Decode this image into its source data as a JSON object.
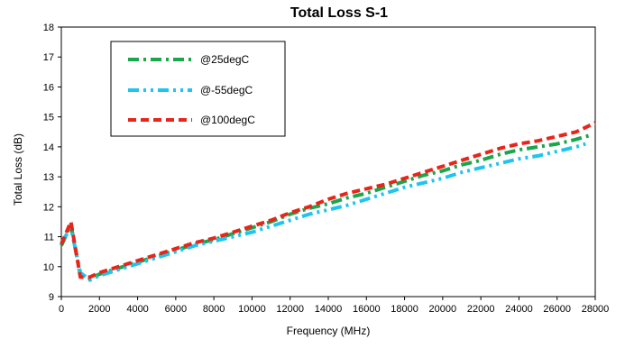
{
  "chart_data": {
    "type": "line",
    "title": "Total Loss S-1",
    "xlabel": "Frequency (MHz)",
    "ylabel": "Total Loss (dB)",
    "xlim": [
      0,
      28000
    ],
    "ylim": [
      9,
      18
    ],
    "x_ticks": [
      0,
      2000,
      4000,
      6000,
      8000,
      10000,
      12000,
      14000,
      16000,
      18000,
      20000,
      22000,
      24000,
      26000,
      28000
    ],
    "y_ticks": [
      9,
      10,
      11,
      12,
      13,
      14,
      15,
      16,
      17,
      18
    ],
    "grid": false,
    "legend_position": "top-left",
    "series": [
      {
        "name": "@25degC",
        "color": "#1aa64a",
        "dash": "dash-dot",
        "x": [
          0,
          500,
          1000,
          1500,
          2000,
          3000,
          4000,
          5000,
          6000,
          7000,
          8000,
          9000,
          10000,
          11000,
          12000,
          13000,
          14000,
          15000,
          16000,
          17000,
          18000,
          19000,
          20000,
          21000,
          22000,
          23000,
          24000,
          25000,
          26000,
          27000,
          27800
        ],
        "y": [
          10.7,
          11.4,
          9.7,
          9.6,
          9.75,
          9.95,
          10.15,
          10.35,
          10.55,
          10.75,
          10.9,
          11.1,
          11.3,
          11.5,
          11.75,
          11.95,
          12.1,
          12.3,
          12.45,
          12.65,
          12.85,
          13.05,
          13.2,
          13.4,
          13.55,
          13.75,
          13.9,
          14.0,
          14.1,
          14.25,
          14.4
        ]
      },
      {
        "name": "@-55degC",
        "color": "#1fc4f0",
        "dash": "dash-dot-dot",
        "x": [
          0,
          500,
          1000,
          1500,
          2000,
          3000,
          4000,
          5000,
          6000,
          7000,
          8000,
          9000,
          10000,
          11000,
          12000,
          13000,
          14000,
          15000,
          16000,
          17000,
          18000,
          19000,
          20000,
          21000,
          22000,
          23000,
          24000,
          25000,
          26000,
          27000,
          27500
        ],
        "y": [
          10.8,
          11.3,
          9.8,
          9.55,
          9.7,
          9.9,
          10.1,
          10.3,
          10.5,
          10.7,
          10.85,
          11.0,
          11.15,
          11.35,
          11.55,
          11.75,
          11.9,
          12.05,
          12.25,
          12.45,
          12.65,
          12.8,
          12.95,
          13.15,
          13.3,
          13.45,
          13.6,
          13.7,
          13.85,
          14.0,
          14.1
        ]
      },
      {
        "name": "@100degC",
        "color": "#e8251b",
        "dash": "dash",
        "x": [
          0,
          500,
          1000,
          1500,
          2000,
          3000,
          4000,
          5000,
          6000,
          7000,
          8000,
          9000,
          10000,
          11000,
          12000,
          13000,
          14000,
          15000,
          16000,
          17000,
          18000,
          19000,
          20000,
          21000,
          22000,
          23000,
          24000,
          25000,
          26000,
          27000,
          28000
        ],
        "y": [
          10.75,
          11.5,
          9.65,
          9.65,
          9.8,
          10.0,
          10.2,
          10.4,
          10.6,
          10.8,
          10.95,
          11.15,
          11.35,
          11.55,
          11.8,
          12.0,
          12.25,
          12.45,
          12.6,
          12.75,
          12.95,
          13.15,
          13.35,
          13.55,
          13.75,
          13.95,
          14.1,
          14.2,
          14.35,
          14.5,
          14.8
        ]
      }
    ]
  }
}
